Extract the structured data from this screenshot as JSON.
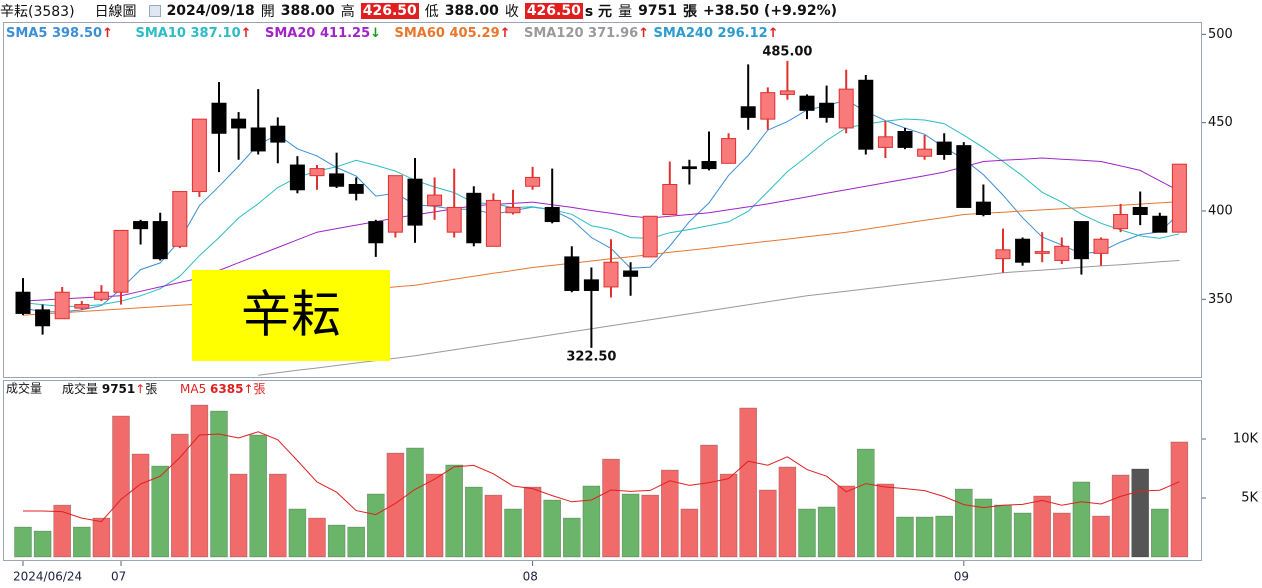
{
  "header": {
    "stock": "辛耘(3583)",
    "chart_kind": "日線圖",
    "date": "2024/09/18",
    "open_label": "開",
    "open": "388.00",
    "high_label": "高",
    "high": "426.50",
    "low_label": "低",
    "low": "388.00",
    "close_label": "收",
    "close": "426.50",
    "unit": "s 元",
    "volume_label": "量",
    "volume": "9751",
    "volume_unit": "張",
    "change": "+38.50 (+9.92%)"
  },
  "watermark": "辛耘",
  "chart_data": [
    {
      "type": "candlestick",
      "ylim": [
        306,
        507
      ],
      "yticks": [
        350,
        400,
        450,
        500
      ],
      "up_color": "#f87a7a",
      "up_edge": "#e03030",
      "down_color": "#000000",
      "ohlc": {
        "open": [
          354,
          344,
          339,
          345,
          350,
          354,
          394,
          394,
          380,
          411,
          461,
          452,
          447,
          448,
          426,
          420,
          421,
          415,
          394,
          388,
          418,
          403,
          388,
          410,
          380,
          399,
          414,
          402,
          374,
          361,
          357,
          366,
          374,
          398,
          425,
          428,
          427,
          459,
          452,
          466,
          465,
          461,
          447,
          474,
          436,
          445,
          431,
          439,
          437,
          405,
          373,
          384,
          376,
          372,
          394,
          376,
          390,
          402,
          397,
          388
        ],
        "high": [
          362,
          347,
          357,
          349,
          358,
          389,
          395,
          399,
          411,
          452,
          473,
          456,
          469,
          453,
          431,
          426,
          433,
          419,
          395,
          420,
          430,
          419,
          424,
          414,
          410,
          412,
          425,
          424,
          380,
          368,
          384,
          371,
          397,
          428,
          429,
          445,
          444,
          483,
          470,
          485,
          466,
          471,
          480,
          477,
          451,
          447,
          443,
          444,
          439,
          415,
          390,
          385,
          388,
          385,
          394,
          385,
          404,
          411,
          399,
          426.5
        ],
        "low": [
          341,
          330,
          339,
          344,
          349,
          347,
          381,
          372,
          379,
          408,
          422,
          429,
          432,
          427,
          410,
          412,
          413,
          406,
          374,
          385,
          382,
          395,
          385,
          380,
          380,
          398,
          412,
          393,
          354,
          322.5,
          351,
          352,
          374,
          398,
          415,
          423,
          427,
          446,
          446,
          463,
          452,
          450,
          444,
          432,
          430,
          435,
          429,
          429,
          402,
          397,
          365,
          369,
          371,
          370,
          364,
          369,
          388,
          392,
          388,
          388
        ],
        "close": [
          342,
          335,
          354,
          347,
          354,
          389,
          390,
          373,
          411,
          452,
          444,
          447,
          434,
          439,
          412,
          424,
          414,
          410,
          382,
          420,
          392,
          409,
          402,
          382,
          406,
          402,
          419,
          394,
          355,
          355,
          371,
          363,
          397,
          415,
          424,
          424,
          441,
          453,
          467,
          468,
          457,
          453,
          469,
          435,
          442,
          436,
          435,
          432,
          402,
          398,
          378,
          371,
          377,
          380,
          373,
          384,
          398,
          398,
          388,
          426.5
        ]
      },
      "annotations": [
        {
          "label": "485.00",
          "value": 485
        },
        {
          "label": "322.50",
          "value": 322.5
        }
      ],
      "series": [
        {
          "name": "SMA5",
          "color": "#3c8fd6",
          "value_label": "398.50",
          "arrow": "↑",
          "arrow_color": "#e02020",
          "values": [
            345,
            343,
            343,
            344,
            346.4,
            355.8,
            366.8,
            370.6,
            383.4,
            403,
            414,
            425.4,
            437.6,
            443.2,
            435.2,
            431.2,
            424.6,
            419.8,
            408.4,
            410,
            403.6,
            402.6,
            401,
            401,
            398.2,
            400.2,
            402.2,
            400.6,
            395.2,
            385,
            378.8,
            367.6,
            368.2,
            380.2,
            394,
            404.6,
            420.2,
            431.4,
            445.8,
            450.6,
            457.2,
            459.6,
            462.8,
            456.4,
            451.2,
            447,
            443.4,
            436,
            429.4,
            420.6,
            409,
            396.2,
            385.2,
            380.8,
            375.8,
            377,
            382.4,
            386.6,
            388.2,
            398.5
          ]
        },
        {
          "name": "SMA10",
          "color": "#2cbcc4",
          "value_label": "387.10",
          "arrow": "↑",
          "arrow_color": "#e02020",
          "values": [
            348,
            347,
            346,
            346,
            347,
            349,
            352,
            356,
            363,
            374.7,
            384.9,
            396.1,
            404.1,
            413.3,
            419.1,
            422.6,
            425,
            428.7,
            425.8,
            422.6,
            417.4,
            413.6,
            410.4,
            404.7,
            404.1,
            401.9,
            402.4,
            400.8,
            398.1,
            391.6,
            389.5,
            384.9,
            384.4,
            387.7,
            389.5,
            391.7,
            393.9,
            399.8,
            411,
            422.3,
            430.9,
            439.9,
            447.1,
            449.1,
            450.9,
            452.1,
            451.5,
            449.4,
            442.9,
            435.9,
            428,
            419.8,
            410.6,
            405.1,
            398.2,
            393,
            389.3,
            385.9,
            384.5,
            387.1
          ]
        },
        {
          "name": "SMA20",
          "color": "#a024c8",
          "value_label": "411.25",
          "arrow": "↓",
          "arrow_color": "#1a9a1a",
          "values": [
            349,
            349.6,
            350.2,
            350.8,
            351.4,
            352,
            354.5,
            357,
            359.5,
            362,
            366.3,
            370.7,
            375,
            379.3,
            383.7,
            388,
            390,
            392,
            394,
            396,
            397.8,
            399.5,
            401.3,
            403,
            403.7,
            404.3,
            405,
            403.5,
            402,
            400.3,
            398.7,
            397,
            396,
            397,
            398,
            399,
            400.7,
            402.3,
            404,
            406,
            408,
            410,
            412,
            414,
            416,
            418,
            420,
            422,
            425,
            428,
            428.7,
            429.3,
            430,
            429.3,
            428.7,
            428,
            425.5,
            423,
            417.1,
            411.25
          ]
        },
        {
          "name": "SMA60",
          "color": "#e8772e",
          "value_label": "405.29",
          "arrow": "↑",
          "arrow_color": "#e02020",
          "values": [
            341,
            341.7,
            342.4,
            343.1,
            343.8,
            344.5,
            345.2,
            345.9,
            346.6,
            347.3,
            348,
            349,
            350,
            351,
            352,
            353,
            354,
            355,
            356,
            357,
            358,
            359.7,
            361.3,
            363,
            364.7,
            366.3,
            368,
            369.2,
            370.4,
            371.7,
            372.9,
            374.1,
            375.3,
            376.6,
            377.8,
            379,
            380.3,
            381.6,
            382.9,
            384.1,
            385.4,
            386.7,
            388,
            389.7,
            391.3,
            393,
            394.7,
            396.3,
            398,
            398.7,
            399.3,
            400,
            400.6,
            401.3,
            401.9,
            402.6,
            403.3,
            403.9,
            404.6,
            405.29
          ]
        },
        {
          "name": "SMA120",
          "color": "#9a9a9a",
          "value_label": "371.96",
          "arrow": "↑",
          "arrow_color": "#e02020",
          "values": [
            null,
            null,
            null,
            null,
            null,
            null,
            null,
            null,
            null,
            null,
            null,
            null,
            307,
            308.4,
            309.8,
            311.1,
            312.5,
            313.9,
            315.3,
            316.6,
            318,
            319.7,
            321.4,
            323.1,
            324.8,
            326.5,
            328.2,
            329.9,
            331.6,
            333.3,
            335,
            336.7,
            338.4,
            340.1,
            341.8,
            343.5,
            345.2,
            346.9,
            348.6,
            350.3,
            352,
            353.3,
            354.6,
            355.9,
            357.2,
            358.5,
            359.8,
            361.1,
            362.4,
            363.7,
            365,
            365.8,
            366.5,
            367.3,
            368.1,
            368.9,
            369.6,
            370.4,
            371.2,
            371.96
          ]
        },
        {
          "name": "SMA240",
          "color": "#2c9ccf",
          "value_label": "296.12",
          "arrow": "↑",
          "arrow_color": "#e02020"
        }
      ]
    },
    {
      "type": "bar",
      "title": "成交量",
      "ylim": [
        0,
        15000
      ],
      "yticks": [
        {
          "value": 5000,
          "label": "5K"
        },
        {
          "value": 10000,
          "label": "10K"
        }
      ],
      "categories": [
        "2024/06/24",
        null,
        null,
        null,
        null,
        "07",
        null,
        null,
        null,
        null,
        null,
        null,
        null,
        null,
        null,
        null,
        null,
        null,
        null,
        null,
        null,
        null,
        null,
        null,
        null,
        null,
        "08",
        null,
        null,
        null,
        null,
        null,
        null,
        null,
        null,
        null,
        null,
        null,
        null,
        null,
        null,
        null,
        null,
        null,
        null,
        null,
        null,
        null,
        "09",
        null,
        null,
        null,
        null,
        null,
        null,
        null,
        null,
        null,
        null,
        null
      ],
      "series": [
        {
          "name": "成交量",
          "value_label": "9751",
          "arrow": "↑",
          "unit": "張",
          "color": "#000000",
          "values": [
            2540,
            2200,
            4400,
            2540,
            3300,
            11950,
            8730,
            7710,
            10420,
            12880,
            12370,
            7030,
            10340,
            7030,
            4070,
            3300,
            2710,
            2540,
            5340,
            8810,
            9240,
            7030,
            7800,
            5930,
            5250,
            4070,
            5930,
            4830,
            3300,
            6020,
            8300,
            5340,
            5250,
            7370,
            4070,
            9490,
            7030,
            12630,
            5680,
            7630,
            4070,
            4240,
            6020,
            9150,
            6190,
            3390,
            3390,
            3470,
            5760,
            4920,
            4410,
            3730,
            5170,
            3730,
            6360,
            3470,
            6950,
            7460,
            4070,
            9751
          ],
          "colors": [
            "#6bb56b",
            "#6bb56b",
            "#f26b6b",
            "#6bb56b",
            "#f26b6b",
            "#f26b6b",
            "#f26b6b",
            "#6bb56b",
            "#f26b6b",
            "#f26b6b",
            "#6bb56b",
            "#f26b6b",
            "#6bb56b",
            "#f26b6b",
            "#6bb56b",
            "#f26b6b",
            "#6bb56b",
            "#6bb56b",
            "#6bb56b",
            "#f26b6b",
            "#6bb56b",
            "#f26b6b",
            "#6bb56b",
            "#6bb56b",
            "#f26b6b",
            "#6bb56b",
            "#f26b6b",
            "#6bb56b",
            "#6bb56b",
            "#6bb56b",
            "#f26b6b",
            "#6bb56b",
            "#f26b6b",
            "#f26b6b",
            "#f26b6b",
            "#f26b6b",
            "#f26b6b",
            "#f26b6b",
            "#f26b6b",
            "#f26b6b",
            "#6bb56b",
            "#6bb56b",
            "#f26b6b",
            "#6bb56b",
            "#f26b6b",
            "#6bb56b",
            "#6bb56b",
            "#6bb56b",
            "#6bb56b",
            "#6bb56b",
            "#6bb56b",
            "#6bb56b",
            "#f26b6b",
            "#f26b6b",
            "#6bb56b",
            "#f26b6b",
            "#f26b6b",
            "#555555",
            "#6bb56b",
            "#f26b6b"
          ]
        },
        {
          "name": "MA5",
          "value_label": "6385",
          "arrow": "↑",
          "unit": "張",
          "color": "#e02020",
          "values": [
            3900,
            3900,
            3850,
            3300,
            2996,
            4878,
            6184,
            6846,
            8422,
            10338,
            10422,
            10082,
            10608,
            9930,
            8168,
            6354,
            5490,
            3930,
            3592,
            4540,
            5728,
            6592,
            7644,
            7762,
            7050,
            6016,
            5796,
            5202,
            4676,
            4830,
            5676,
            5558,
            5642,
            6456,
            6066,
            6304,
            6642,
            8118,
            7780,
            8492,
            7408,
            6850,
            5528,
            6222,
            5934,
            5798,
            5628,
            5118,
            4440,
            4186,
            4390,
            4458,
            4798,
            4392,
            4680,
            4492,
            5136,
            5594,
            5662,
            6385
          ]
        }
      ]
    }
  ]
}
